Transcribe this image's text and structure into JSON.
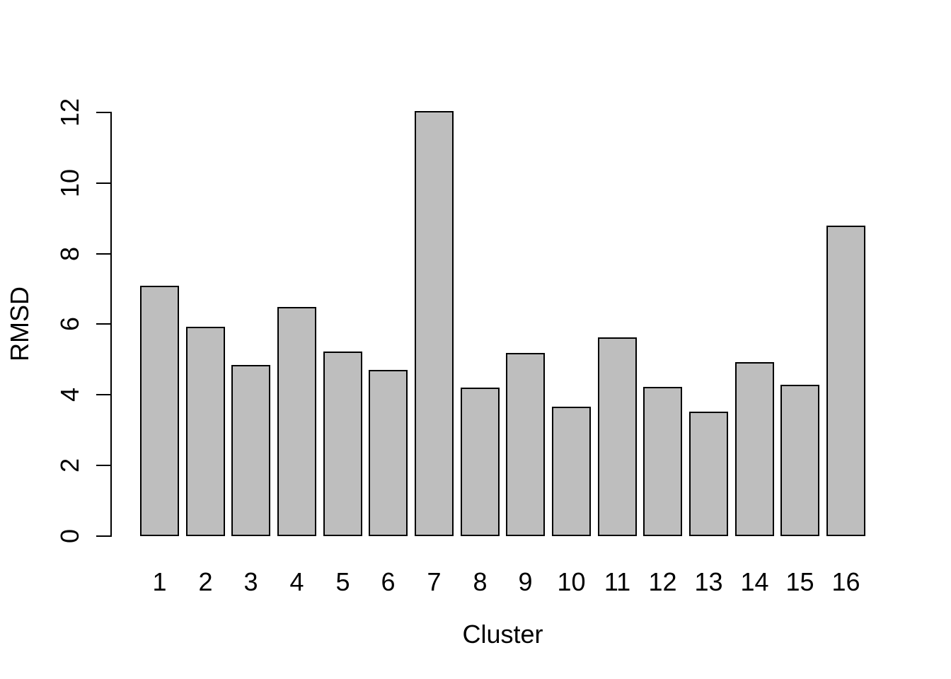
{
  "chart_data": {
    "type": "bar",
    "title": "",
    "xlabel": "Cluster",
    "ylabel": "RMSD",
    "categories": [
      "1",
      "2",
      "3",
      "4",
      "5",
      "6",
      "7",
      "8",
      "9",
      "10",
      "11",
      "12",
      "13",
      "14",
      "15",
      "16"
    ],
    "values": [
      7.09,
      5.93,
      4.85,
      6.49,
      5.23,
      4.71,
      12.04,
      4.21,
      5.19,
      3.67,
      5.63,
      4.23,
      3.53,
      4.93,
      4.29,
      8.79
    ],
    "yticks": [
      0,
      2,
      4,
      6,
      8,
      10,
      12
    ],
    "ylim": [
      0,
      12.05
    ],
    "grid": false,
    "legend": null,
    "bar_fill_color": "#bebebe",
    "bar_border_color": "#000000",
    "background_color": "#ffffff",
    "text_color": "#000000"
  }
}
